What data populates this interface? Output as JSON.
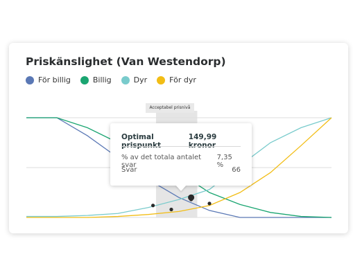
{
  "title": "Priskänslighet (Van Westendorp)",
  "legend": [
    {
      "label": "För billig",
      "color": "#5a78b5"
    },
    {
      "label": "Billig",
      "color": "#1aa571"
    },
    {
      "label": "Dyr",
      "color": "#79cbcc"
    },
    {
      "label": "För dyr",
      "color": "#f2bd15"
    }
  ],
  "band_label": "Acceptabel prisnivå",
  "tooltip": {
    "heading": "Optimal prispunkt",
    "heading_value": "149,99 kronor",
    "row1_label": "% av det totala antalet svar",
    "row1_value": "7,35 %",
    "row2_label": "Svar",
    "row2_value": "66"
  },
  "chart_data": {
    "type": "line",
    "title": "Priskänslighet (Van Westendorp)",
    "x": [
      0,
      2,
      4,
      6,
      8,
      10,
      12,
      14,
      16,
      18,
      20
    ],
    "ylim": [
      0,
      100
    ],
    "grid": true,
    "legend_position": "top-left",
    "series": [
      {
        "name": "För billig",
        "color": "#5a78b5",
        "values": [
          100,
          100,
          82,
          60,
          38,
          20,
          7,
          0,
          0,
          0,
          0
        ]
      },
      {
        "name": "Billig",
        "color": "#1aa571",
        "values": [
          100,
          100,
          90,
          75,
          60,
          45,
          25,
          13,
          5,
          1,
          0
        ]
      },
      {
        "name": "Dyr",
        "color": "#79cbcc",
        "values": [
          1,
          1,
          2,
          4,
          10,
          18,
          28,
          52,
          75,
          90,
          100
        ]
      },
      {
        "name": "För dyr",
        "color": "#f2bd15",
        "values": [
          0,
          0,
          0,
          1,
          3,
          6,
          12,
          25,
          45,
          72,
          100
        ]
      }
    ],
    "points": [
      {
        "x": 8.3,
        "y": 12,
        "color": "#2a2a2a"
      },
      {
        "x": 9.5,
        "y": 8,
        "color": "#2a2a2a"
      },
      {
        "x": 10.8,
        "y": 18,
        "color": "#2a2a2a"
      },
      {
        "x": 12.0,
        "y": 14,
        "color": "#2a2a2a"
      }
    ],
    "accepted_range": [
      8.5,
      11.2
    ],
    "optimal_point": {
      "x": 10.8,
      "y": 20
    }
  }
}
